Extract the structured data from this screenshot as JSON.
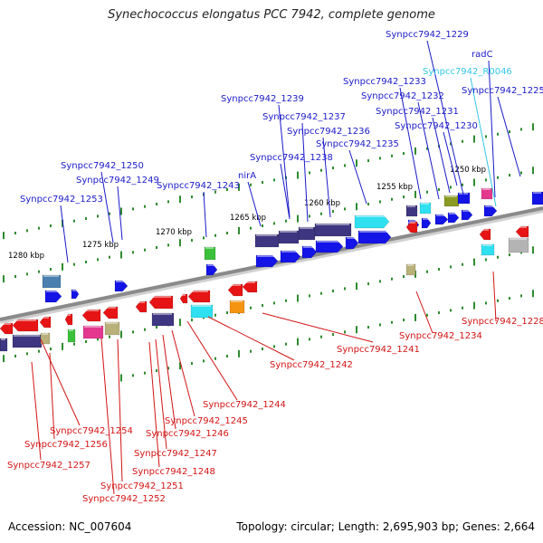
{
  "title": "Synechococcus elongatus PCC 7942, complete genome",
  "footer": {
    "accession": "Accession: NC_007604",
    "summary": "Topology: circular; Length: 2,695,903 bp; Genes: 2,664"
  },
  "colors": {
    "backbone": "#8a8a8a",
    "tick": "#2e8b2e",
    "label_top": "#1a1ac8",
    "label_bottom": "#d21414",
    "label_rna": "#35c6e6",
    "arrow_blue": "#1414e6",
    "arrow_red": "#e61414",
    "navy": "#3e3680",
    "cyan": "#2fe0f0",
    "green": "#3bc03b",
    "olive": "#8a9a22",
    "magenta": "#e4388f",
    "orange": "#f59410",
    "khaki": "#b9b07a",
    "steel": "#4a7fb0",
    "gray": "#b4b4b4"
  },
  "scale_labels": [
    "1250 kbp",
    "1255 kbp",
    "1260 kbp",
    "1265 kbp",
    "1270 kbp",
    "1275 kbp",
    "1280 kbp"
  ],
  "top_labels": [
    {
      "text": "Synpcc7942_1229",
      "color": "blue"
    },
    {
      "text": "radC",
      "color": "blue"
    },
    {
      "text": "Synpcc7942_R0046",
      "color": "rna"
    },
    {
      "text": "Synpcc7942_1225",
      "color": "blue"
    },
    {
      "text": "Synpcc7942_1233",
      "color": "blue"
    },
    {
      "text": "Synpcc7942_1232",
      "color": "blue"
    },
    {
      "text": "Synpcc7942_1231",
      "color": "blue"
    },
    {
      "text": "Synpcc7942_1230",
      "color": "blue"
    },
    {
      "text": "Synpcc7942_1239",
      "color": "blue"
    },
    {
      "text": "Synpcc7942_1237",
      "color": "blue"
    },
    {
      "text": "Synpcc7942_1236",
      "color": "blue"
    },
    {
      "text": "Synpcc7942_1235",
      "color": "blue"
    },
    {
      "text": "Synpcc7942_1238",
      "color": "blue"
    },
    {
      "text": "nirA",
      "color": "blue"
    },
    {
      "text": "Synpcc7942_1243",
      "color": "blue"
    },
    {
      "text": "Synpcc7942_1250",
      "color": "blue"
    },
    {
      "text": "Synpcc7942_1249",
      "color": "blue"
    },
    {
      "text": "Synpcc7942_1253",
      "color": "blue"
    }
  ],
  "bottom_labels": [
    "Synpcc7942_1228",
    "Synpcc7942_1234",
    "Synpcc7942_1241",
    "Synpcc7942_1242",
    "Synpcc7942_1244",
    "Synpcc7942_1245",
    "Synpcc7942_1246",
    "Synpcc7942_1247",
    "Synpcc7942_1248",
    "Synpcc7942_1251",
    "Synpcc7942_1252",
    "Synpcc7942_1254",
    "Synpcc7942_1256",
    "Synpcc7942_1257"
  ]
}
